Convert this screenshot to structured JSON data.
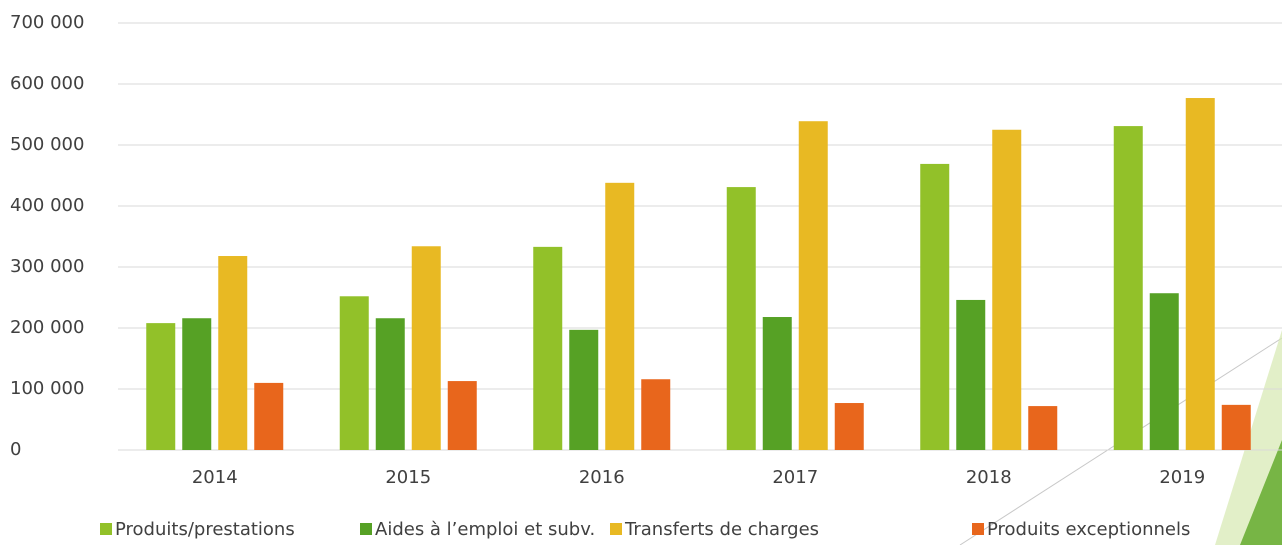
{
  "chart_data": {
    "type": "bar",
    "categories": [
      "2014",
      "2015",
      "2016",
      "2017",
      "2018",
      "2019"
    ],
    "series": [
      {
        "name": "Produits/prestations",
        "color": "#92c129",
        "values": [
          208000,
          252000,
          333000,
          431000,
          469000,
          531000
        ]
      },
      {
        "name": "Aides à l’emploi et subv.",
        "color": "#56a125",
        "values": [
          216000,
          216000,
          197000,
          218000,
          246000,
          257000
        ]
      },
      {
        "name": "Transferts de charges",
        "color": "#e8b923",
        "values": [
          318000,
          334000,
          438000,
          539000,
          525000,
          577000
        ]
      },
      {
        "name": "Produits exceptionnels",
        "color": "#e8661c",
        "values": [
          110000,
          113000,
          116000,
          77000,
          72000,
          74000
        ]
      }
    ],
    "ylim": [
      0,
      700000
    ],
    "yticks": [
      0,
      {
        "value": 100000,
        "label": "100 000"
      },
      {
        "value": 200000,
        "label": "200 000"
      },
      {
        "value": 300000,
        "label": "300 000"
      },
      {
        "value": 400000,
        "label": "400 000"
      },
      {
        "value": 500000,
        "label": "500 000"
      },
      {
        "value": 600000,
        "label": "600 000"
      },
      {
        "value": 700000,
        "label": "700 000"
      }
    ],
    "grid": true,
    "legend": "bottom"
  }
}
